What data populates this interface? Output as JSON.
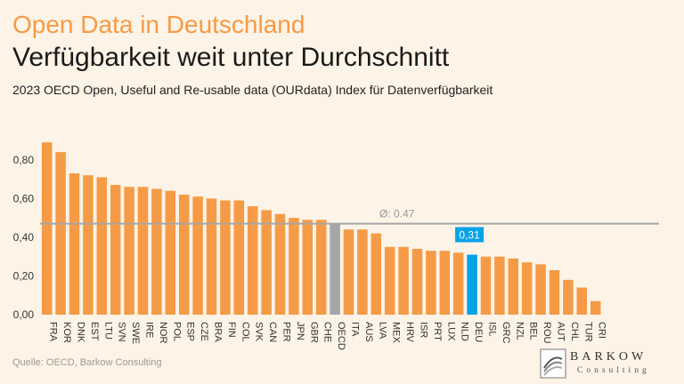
{
  "header": {
    "kicker": "Open Data in Deutschland",
    "headline": "Verfügbarkeit weit unter Durchschnitt",
    "subtitle": "2023 OECD Open, Useful and Re-usable data (OURdata) Index für Datenverfügbarkeit"
  },
  "footer": {
    "source": "Quelle: OECD, Barkow Consulting",
    "logo_name": "BARKOW",
    "logo_sub": "Consulting"
  },
  "colors": {
    "bar": "#f59b47",
    "average": "#a6a6a6",
    "highlight": "#00a3e8",
    "avg_line": "#a6a6a6",
    "axis_text": "#333333"
  },
  "chart_data": {
    "type": "bar",
    "categories": [
      "FRA",
      "KOR",
      "DNK",
      "EST",
      "LTU",
      "SVN",
      "SWE",
      "IRE",
      "NOR",
      "POL",
      "ESP",
      "CZE",
      "BRA",
      "FIN",
      "COL",
      "SVK",
      "CAN",
      "PER",
      "JPN",
      "GBR",
      "CHE",
      "OECD",
      "ITA",
      "AUS",
      "LVA",
      "MEX",
      "HRV",
      "ISR",
      "PRT",
      "LUX",
      "NLD",
      "DEU",
      "ISL",
      "GRC",
      "NZL",
      "BEL",
      "ROU",
      "AUT",
      "CHL",
      "TUR",
      "CRI"
    ],
    "values": [
      0.89,
      0.84,
      0.73,
      0.72,
      0.71,
      0.67,
      0.66,
      0.66,
      0.65,
      0.64,
      0.62,
      0.61,
      0.6,
      0.59,
      0.59,
      0.56,
      0.54,
      0.52,
      0.5,
      0.49,
      0.49,
      0.47,
      0.44,
      0.44,
      0.42,
      0.35,
      0.35,
      0.34,
      0.33,
      0.33,
      0.32,
      0.31,
      0.3,
      0.3,
      0.29,
      0.27,
      0.26,
      0.23,
      0.18,
      0.14,
      0.07
    ],
    "ylim": [
      0,
      0.9
    ],
    "yticks": [
      {
        "value": 0.0,
        "label": "0,00"
      },
      {
        "value": 0.2,
        "label": "0,20"
      },
      {
        "value": 0.4,
        "label": "0,40"
      },
      {
        "value": 0.6,
        "label": "0,60"
      },
      {
        "value": 0.8,
        "label": "0,80"
      }
    ],
    "average": {
      "value": 0.47,
      "label": "Ø: 0.47"
    },
    "average_category": "OECD",
    "highlight": {
      "category": "DEU",
      "label": "0,31"
    },
    "grid": false
  }
}
